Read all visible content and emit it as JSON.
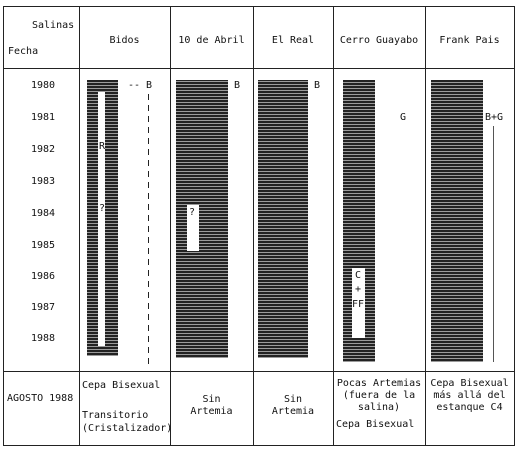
{
  "header": {
    "corner_top": "Salinas",
    "corner_bottom": "Fecha",
    "columns": [
      "Bidos",
      "10 de Abril",
      "El Real",
      "Cerro Guayabo",
      "Frank Pais"
    ]
  },
  "years": [
    "1980",
    "1981",
    "1982",
    "1983",
    "1984",
    "1985",
    "1986",
    "1987",
    "1988"
  ],
  "annotations": {
    "bidos_b": "-- B",
    "bidos_r": "R",
    "bidos_q": "?",
    "abril_b": "B",
    "abril_q": "?",
    "real_b": "B",
    "cerro_g": "G",
    "cerro_c": "C",
    "cerro_plus": "+",
    "cerro_ff": "FF",
    "frank_bg": "B+G"
  },
  "footer": {
    "label": "AGOSTO 1988",
    "bidos": [
      "Cepa Bisexual",
      "",
      "Transitorio",
      "(Cristalizador)"
    ],
    "abril": [
      "Sin",
      "Artemia"
    ],
    "real": [
      "Sin",
      "Artemia"
    ],
    "cerro": [
      "Pocas Artemias",
      "(fuera de la",
      "salina)",
      "Cepa Bisexual"
    ],
    "frank": [
      "Cepa Bisexual",
      "más allá del",
      "estanque C4"
    ]
  }
}
